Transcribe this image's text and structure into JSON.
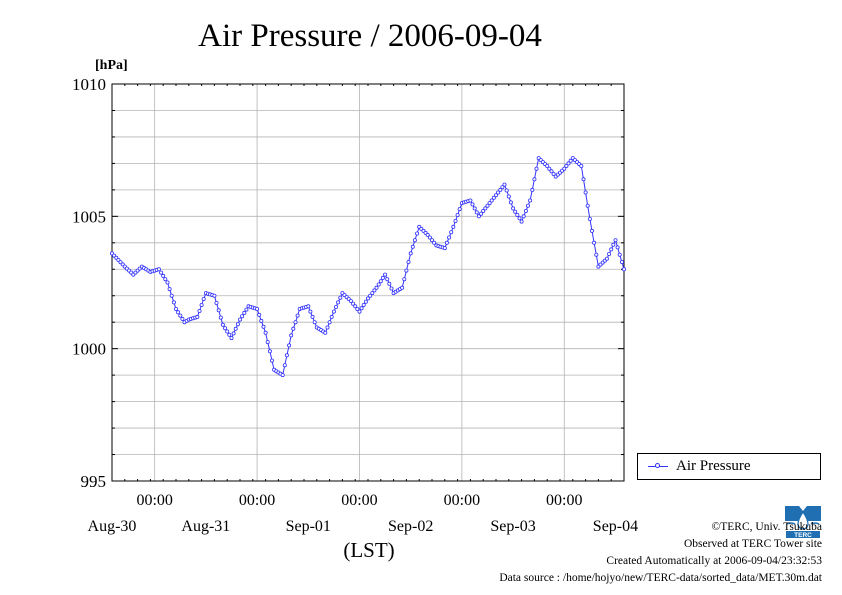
{
  "chart_data": {
    "type": "line",
    "title": "Air Pressure / 2006-09-04",
    "ylabel_unit": "[hPa]",
    "xlabel": "(LST)",
    "ylim": [
      995,
      1010
    ],
    "y_ticks": [
      "1010",
      "1005",
      "1000",
      "995"
    ],
    "x_hours_range": [
      -106,
      14
    ],
    "x_tick_labels": [
      "00:00",
      "00:00",
      "00:00",
      "00:00",
      "00:00"
    ],
    "date_labels": [
      "Aug-30",
      "Aug-31",
      "Sep-01",
      "Sep-02",
      "Sep-03",
      "Sep-04"
    ],
    "grid": true,
    "legend_position": "right",
    "series": [
      {
        "name": "Air Pressure",
        "color": "#3333ff",
        "hours_rel_sep04_midnight": [
          -106,
          -103,
          -101,
          -99,
          -97,
          -95,
          -93,
          -91,
          -89,
          -88,
          -86,
          -84,
          -82,
          -80,
          -78,
          -76,
          -74,
          -72,
          -70,
          -68,
          -66,
          -64,
          -62,
          -60,
          -58,
          -56,
          -54,
          -52,
          -50,
          -48,
          -46,
          -44,
          -42,
          -40,
          -38,
          -36,
          -34,
          -32,
          -30,
          -28,
          -26,
          -24,
          -22,
          -20,
          -18,
          -16,
          -14,
          -12,
          -10,
          -8,
          -6,
          -4,
          -2,
          0,
          2,
          4,
          6,
          8,
          10,
          12,
          14
        ],
        "values": [
          1003.6,
          1003.1,
          1002.8,
          1003.1,
          1002.9,
          1003.0,
          1002.5,
          1001.5,
          1001.0,
          1001.1,
          1001.2,
          1002.1,
          1002.0,
          1000.9,
          1000.4,
          1001.1,
          1001.6,
          1001.5,
          1000.6,
          999.2,
          999.0,
          1000.5,
          1001.5,
          1001.6,
          1000.8,
          1000.6,
          1001.4,
          1002.1,
          1001.8,
          1001.4,
          1001.9,
          1002.3,
          1002.8,
          1002.1,
          1002.3,
          1003.6,
          1004.6,
          1004.3,
          1003.9,
          1003.8,
          1004.6,
          1005.5,
          1005.6,
          1005.0,
          1005.4,
          1005.8,
          1006.2,
          1005.3,
          1004.8,
          1005.6,
          1007.2,
          1006.9,
          1006.5,
          1006.8,
          1007.2,
          1006.9,
          1004.9,
          1003.1,
          1003.4,
          1004.1,
          1003.0
        ]
      }
    ]
  },
  "credits": {
    "copyright": "©TERC, Univ. Tsukuba",
    "observed": "Observed at TERC Tower site",
    "created": "Created Automatically at 2006-09-04/23:32:53",
    "source": "Data source : /home/hojyo/new/TERC-data/sorted_data/MET.30m.dat"
  },
  "logo": {
    "text": "TERC",
    "color": "#1f6fb2"
  }
}
